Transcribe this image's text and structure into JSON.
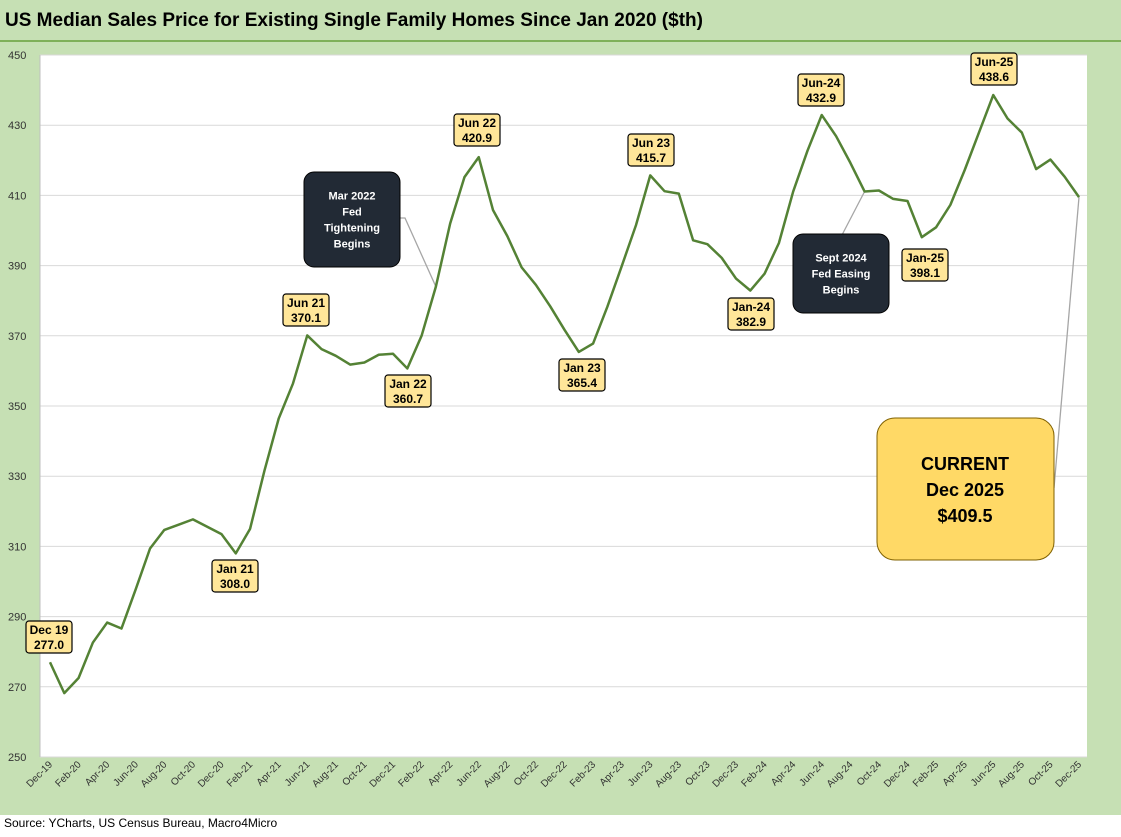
{
  "chart_data": {
    "type": "line",
    "title": "US Median Sales Price for Existing Single Family Homes Since Jan 2020 ($th)",
    "xlabel": "",
    "ylabel": "",
    "ylim": [
      250,
      450
    ],
    "yticks": [
      250,
      270,
      290,
      310,
      330,
      350,
      370,
      390,
      410,
      430,
      450
    ],
    "grid": true,
    "line_color": "#548235",
    "x": [
      "Dec-19",
      "Jan-20",
      "Feb-20",
      "Mar-20",
      "Apr-20",
      "May-20",
      "Jun-20",
      "Jul-20",
      "Aug-20",
      "Sep-20",
      "Oct-20",
      "Nov-20",
      "Dec-20",
      "Jan-21",
      "Feb-21",
      "Mar-21",
      "Apr-21",
      "May-21",
      "Jun-21",
      "Jul-21",
      "Aug-21",
      "Sep-21",
      "Oct-21",
      "Nov-21",
      "Dec-21",
      "Jan-22",
      "Feb-22",
      "Mar-22",
      "Apr-22",
      "May-22",
      "Jun-22",
      "Jul-22",
      "Aug-22",
      "Sep-22",
      "Oct-22",
      "Nov-22",
      "Dec-22",
      "Jan-23",
      "Feb-23",
      "Mar-23",
      "Apr-23",
      "May-23",
      "Jun-23",
      "Jul-23",
      "Aug-23",
      "Sep-23",
      "Oct-23",
      "Nov-23",
      "Dec-23",
      "Jan-24",
      "Feb-24",
      "Mar-24",
      "Apr-24",
      "May-24",
      "Jun-24",
      "Jul-24",
      "Aug-24",
      "Sep-24",
      "Oct-24",
      "Nov-24",
      "Dec-24",
      "Jan-25",
      "Feb-25",
      "Mar-25",
      "Apr-25",
      "May-25",
      "Jun-25",
      "Jul-25",
      "Aug-25",
      "Sep-25",
      "Oct-25",
      "Nov-25",
      "Dec-25"
    ],
    "x_tick_labels": [
      "Dec-19",
      "Feb-20",
      "Apr-20",
      "Jun-20",
      "Aug-20",
      "Oct-20",
      "Dec-20",
      "Feb-21",
      "Apr-21",
      "Jun-21",
      "Aug-21",
      "Oct-21",
      "Dec-21",
      "Feb-22",
      "Apr-22",
      "Jun-22",
      "Aug-22",
      "Oct-22",
      "Dec-22",
      "Feb-23",
      "Apr-23",
      "Jun-23",
      "Aug-23",
      "Oct-23",
      "Dec-23",
      "Feb-24",
      "Apr-24",
      "Jun-24",
      "Aug-24",
      "Oct-24",
      "Dec-24",
      "Feb-25",
      "Apr-25",
      "Jun-25",
      "Aug-25",
      "Oct-25",
      "Dec-25"
    ],
    "values": [
      277.0,
      268.2,
      272.5,
      282.6,
      288.3,
      286.6,
      297.8,
      309.4,
      314.7,
      316.2,
      317.7,
      315.6,
      313.5,
      308.0,
      315.0,
      331.5,
      346.4,
      356.4,
      370.1,
      366.2,
      364.3,
      361.8,
      362.4,
      364.6,
      364.9,
      360.7,
      370.0,
      384.0,
      402.0,
      415.2,
      420.9,
      405.8,
      398.4,
      389.5,
      384.5,
      378.4,
      371.7,
      365.4,
      367.8,
      378.3,
      389.8,
      401.5,
      415.7,
      411.2,
      410.5,
      397.2,
      396.1,
      392.2,
      386.3,
      382.9,
      387.7,
      396.4,
      411.1,
      422.7,
      432.9,
      426.9,
      419.3,
      411.1,
      411.4,
      409.0,
      408.4,
      398.1,
      400.9,
      407.3,
      417.2,
      427.9,
      438.6,
      431.9,
      427.9,
      417.5,
      420.2,
      415.3,
      409.5
    ],
    "annotations": [
      {
        "line1": "Dec 19",
        "line2": "277.0"
      },
      {
        "line1": "Jan 21",
        "line2": "308.0"
      },
      {
        "line1": "Jun 21",
        "line2": "370.1"
      },
      {
        "line1": "Jan 22",
        "line2": "360.7"
      },
      {
        "line1": "Jun 22",
        "line2": "420.9"
      },
      {
        "line1": "Jan 23",
        "line2": "365.4"
      },
      {
        "line1": "Jun 23",
        "line2": "415.7"
      },
      {
        "line1": "Jan-24",
        "line2": "382.9"
      },
      {
        "line1": "Jun-24",
        "line2": "432.9"
      },
      {
        "line1": "Jan-25",
        "line2": "398.1"
      },
      {
        "line1": "Jun-25",
        "line2": "438.6"
      }
    ],
    "notes": [
      {
        "lines": [
          "Mar 2022",
          "Fed",
          "Tightening",
          "Begins"
        ]
      },
      {
        "lines": [
          "Sept 2024",
          "Fed Easing",
          "Begins"
        ]
      }
    ],
    "current": {
      "lines": [
        "CURRENT",
        "Dec 2025",
        "$409.5"
      ]
    }
  },
  "source": "Source: YCharts, US Census Bureau, Macro4Micro"
}
